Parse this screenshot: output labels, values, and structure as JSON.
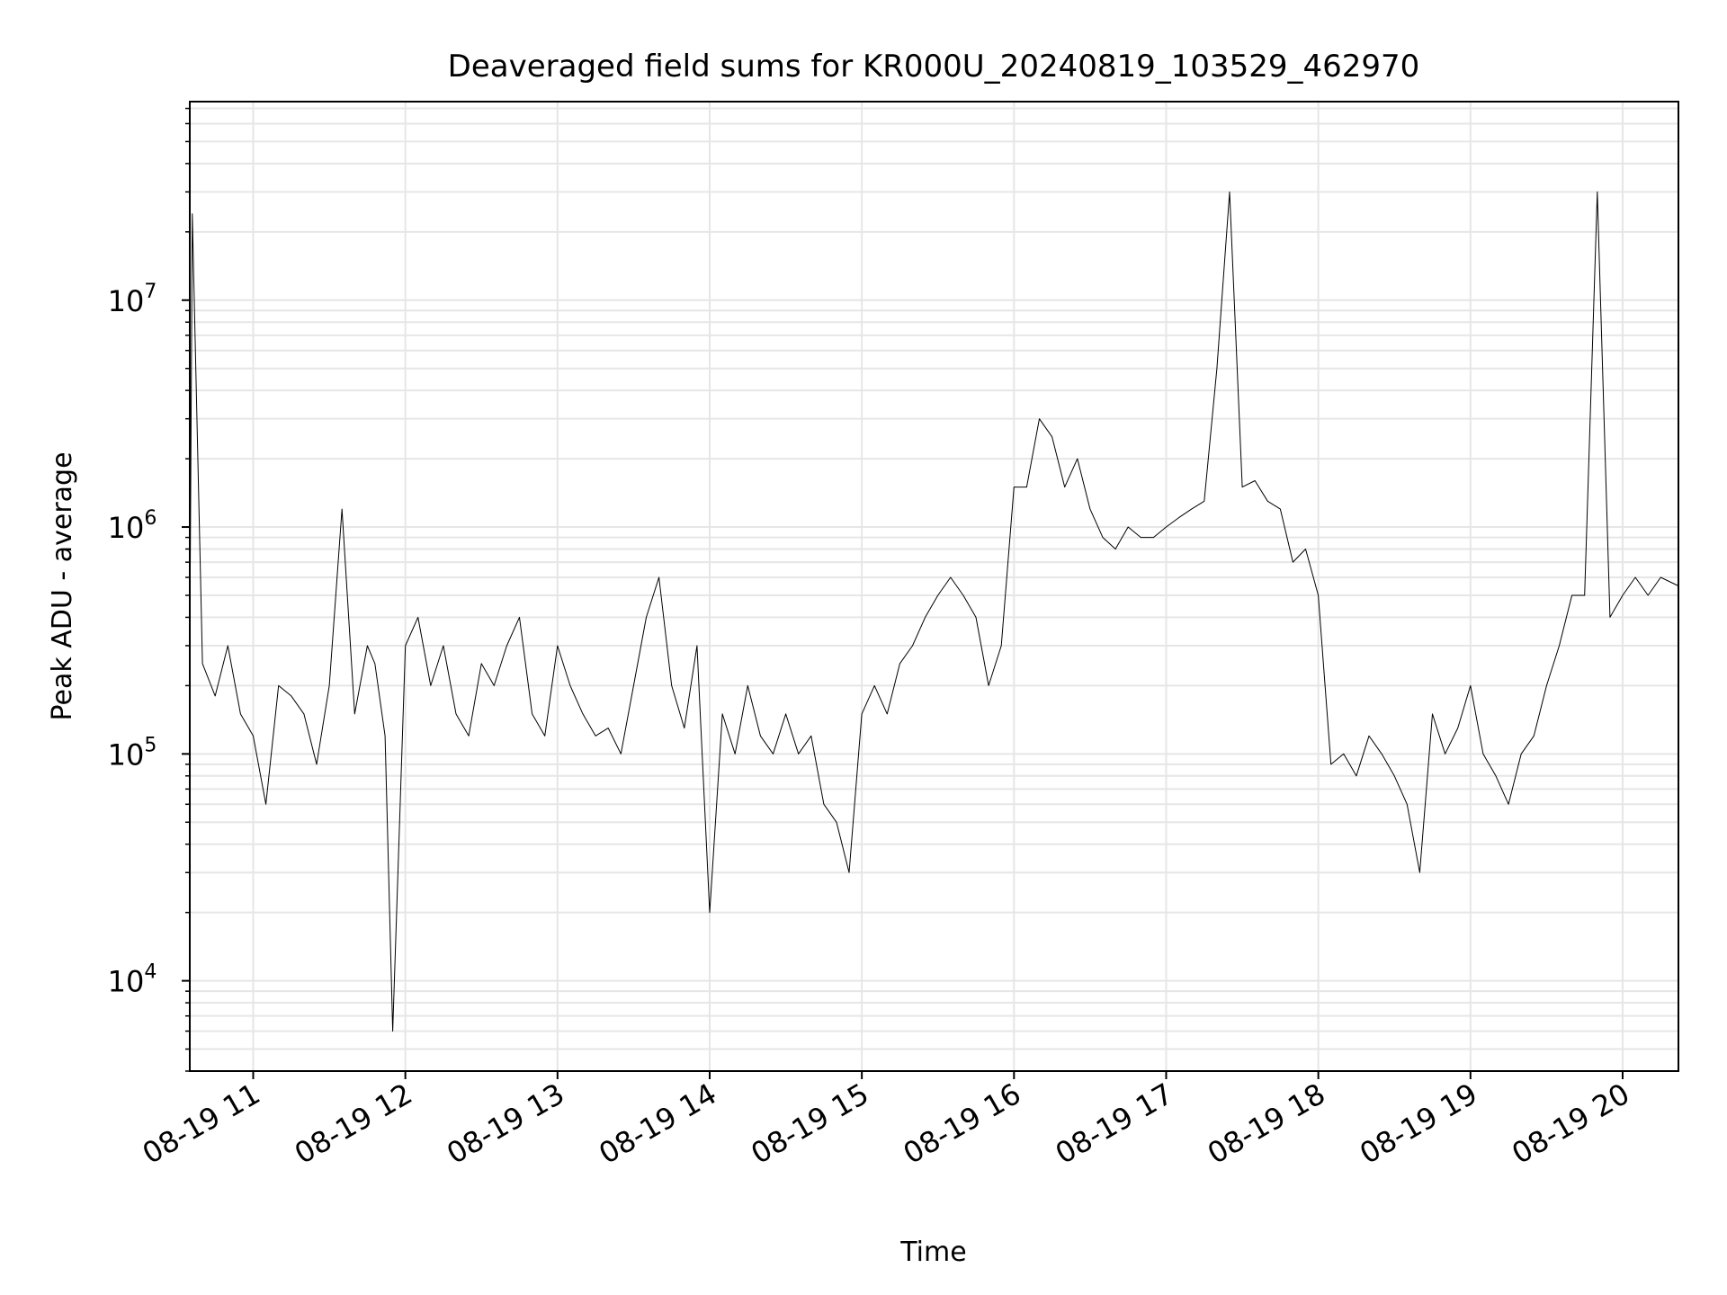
{
  "chart_data": {
    "type": "line",
    "title": "Deaveraged field sums for KR000U_20240819_103529_462970",
    "xlabel": "Time",
    "ylabel": "Peak ADU - average",
    "y_scale": "log",
    "xlim": [
      "2024-08-19 10:35",
      "2024-08-19 20:22"
    ],
    "ylim": [
      4000,
      75000000
    ],
    "x_ticks": [
      "08-19 11",
      "08-19 12",
      "08-19 13",
      "08-19 14",
      "08-19 15",
      "08-19 16",
      "08-19 17",
      "08-19 18",
      "08-19 19",
      "08-19 20"
    ],
    "y_ticks": [
      {
        "base": "10",
        "exp": "4",
        "value": 10000
      },
      {
        "base": "10",
        "exp": "5",
        "value": 100000
      },
      {
        "base": "10",
        "exp": "6",
        "value": 1000000
      },
      {
        "base": "10",
        "exp": "7",
        "value": 10000000
      }
    ],
    "grid": true,
    "line_color": "#000000",
    "grid_color": "#e6e6e6",
    "series": [
      {
        "x": [
          "2024-08-19 10:35",
          "2024-08-19 10:36",
          "2024-08-19 10:40",
          "2024-08-19 10:45",
          "2024-08-19 10:50",
          "2024-08-19 10:55",
          "2024-08-19 11:00",
          "2024-08-19 11:05",
          "2024-08-19 11:10",
          "2024-08-19 11:15",
          "2024-08-19 11:20",
          "2024-08-19 11:25",
          "2024-08-19 11:30",
          "2024-08-19 11:35",
          "2024-08-19 11:40",
          "2024-08-19 11:45",
          "2024-08-19 11:48",
          "2024-08-19 11:52",
          "2024-08-19 11:55",
          "2024-08-19 12:00",
          "2024-08-19 12:05",
          "2024-08-19 12:10",
          "2024-08-19 12:15",
          "2024-08-19 12:20",
          "2024-08-19 12:25",
          "2024-08-19 12:30",
          "2024-08-19 12:35",
          "2024-08-19 12:40",
          "2024-08-19 12:45",
          "2024-08-19 12:50",
          "2024-08-19 12:55",
          "2024-08-19 13:00",
          "2024-08-19 13:05",
          "2024-08-19 13:10",
          "2024-08-19 13:15",
          "2024-08-19 13:20",
          "2024-08-19 13:25",
          "2024-08-19 13:30",
          "2024-08-19 13:35",
          "2024-08-19 13:40",
          "2024-08-19 13:45",
          "2024-08-19 13:50",
          "2024-08-19 13:55",
          "2024-08-19 14:00",
          "2024-08-19 14:05",
          "2024-08-19 14:10",
          "2024-08-19 14:15",
          "2024-08-19 14:20",
          "2024-08-19 14:25",
          "2024-08-19 14:30",
          "2024-08-19 14:35",
          "2024-08-19 14:40",
          "2024-08-19 14:45",
          "2024-08-19 14:50",
          "2024-08-19 14:55",
          "2024-08-19 15:00",
          "2024-08-19 15:05",
          "2024-08-19 15:10",
          "2024-08-19 15:15",
          "2024-08-19 15:20",
          "2024-08-19 15:25",
          "2024-08-19 15:30",
          "2024-08-19 15:35",
          "2024-08-19 15:40",
          "2024-08-19 15:45",
          "2024-08-19 15:50",
          "2024-08-19 15:55",
          "2024-08-19 16:00",
          "2024-08-19 16:05",
          "2024-08-19 16:10",
          "2024-08-19 16:15",
          "2024-08-19 16:20",
          "2024-08-19 16:25",
          "2024-08-19 16:30",
          "2024-08-19 16:35",
          "2024-08-19 16:40",
          "2024-08-19 16:45",
          "2024-08-19 16:50",
          "2024-08-19 16:55",
          "2024-08-19 17:00",
          "2024-08-19 17:05",
          "2024-08-19 17:10",
          "2024-08-19 17:15",
          "2024-08-19 17:20",
          "2024-08-19 17:25",
          "2024-08-19 17:30",
          "2024-08-19 17:35",
          "2024-08-19 17:40",
          "2024-08-19 17:45",
          "2024-08-19 17:50",
          "2024-08-19 17:55",
          "2024-08-19 18:00",
          "2024-08-19 18:05",
          "2024-08-19 18:10",
          "2024-08-19 18:15",
          "2024-08-19 18:20",
          "2024-08-19 18:25",
          "2024-08-19 18:30",
          "2024-08-19 18:35",
          "2024-08-19 18:40",
          "2024-08-19 18:45",
          "2024-08-19 18:50",
          "2024-08-19 18:55",
          "2024-08-19 19:00",
          "2024-08-19 19:05",
          "2024-08-19 19:10",
          "2024-08-19 19:15",
          "2024-08-19 19:20",
          "2024-08-19 19:25",
          "2024-08-19 19:30",
          "2024-08-19 19:35",
          "2024-08-19 19:40",
          "2024-08-19 19:45",
          "2024-08-19 19:50",
          "2024-08-19 19:55",
          "2024-08-19 20:00",
          "2024-08-19 20:05",
          "2024-08-19 20:10",
          "2024-08-19 20:15",
          "2024-08-19 20:22"
        ],
        "y": [
          300000,
          24000000,
          250000,
          180000,
          300000,
          150000,
          120000,
          60000,
          200000,
          180000,
          150000,
          90000,
          200000,
          1200000,
          150000,
          300000,
          250000,
          120000,
          6000,
          300000,
          400000,
          200000,
          300000,
          150000,
          120000,
          250000,
          200000,
          300000,
          400000,
          150000,
          120000,
          300000,
          200000,
          150000,
          120000,
          130000,
          100000,
          200000,
          400000,
          600000,
          200000,
          130000,
          300000,
          20000,
          150000,
          100000,
          200000,
          120000,
          100000,
          150000,
          100000,
          120000,
          60000,
          50000,
          30000,
          150000,
          200000,
          150000,
          250000,
          300000,
          400000,
          500000,
          600000,
          500000,
          400000,
          200000,
          300000,
          1500000,
          1500000,
          3000000,
          2500000,
          1500000,
          2000000,
          1200000,
          900000,
          800000,
          1000000,
          900000,
          900000,
          1000000,
          1100000,
          1200000,
          1300000,
          5000000,
          30000000,
          1500000,
          1600000,
          1300000,
          1200000,
          700000,
          800000,
          500000,
          90000,
          100000,
          80000,
          120000,
          100000,
          80000,
          60000,
          30000,
          150000,
          100000,
          130000,
          200000,
          100000,
          80000,
          60000,
          100000,
          120000,
          200000,
          300000,
          500000,
          500000,
          30000000,
          400000,
          500000,
          600000,
          500000,
          600000,
          550000
        ]
      }
    ]
  }
}
